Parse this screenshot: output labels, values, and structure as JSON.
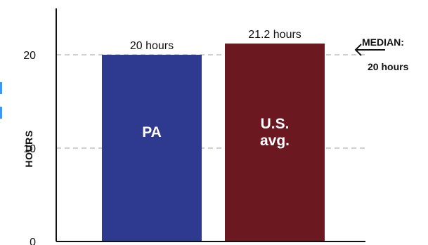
{
  "chart_data": {
    "type": "bar",
    "categories": [
      "PA",
      "U.S.\navg."
    ],
    "values": [
      20,
      21.2
    ],
    "data_labels": [
      "20 hours",
      "21.2 hours"
    ],
    "colors": [
      "#2e3a8f",
      "#6b1821"
    ],
    "ylabel": "HOURS",
    "ylim": [
      0,
      25
    ],
    "yticks": [
      0,
      10,
      20
    ],
    "grid": true,
    "reference_line": {
      "value": 20,
      "title": "MEDIAN:",
      "label": "20 hours"
    }
  }
}
